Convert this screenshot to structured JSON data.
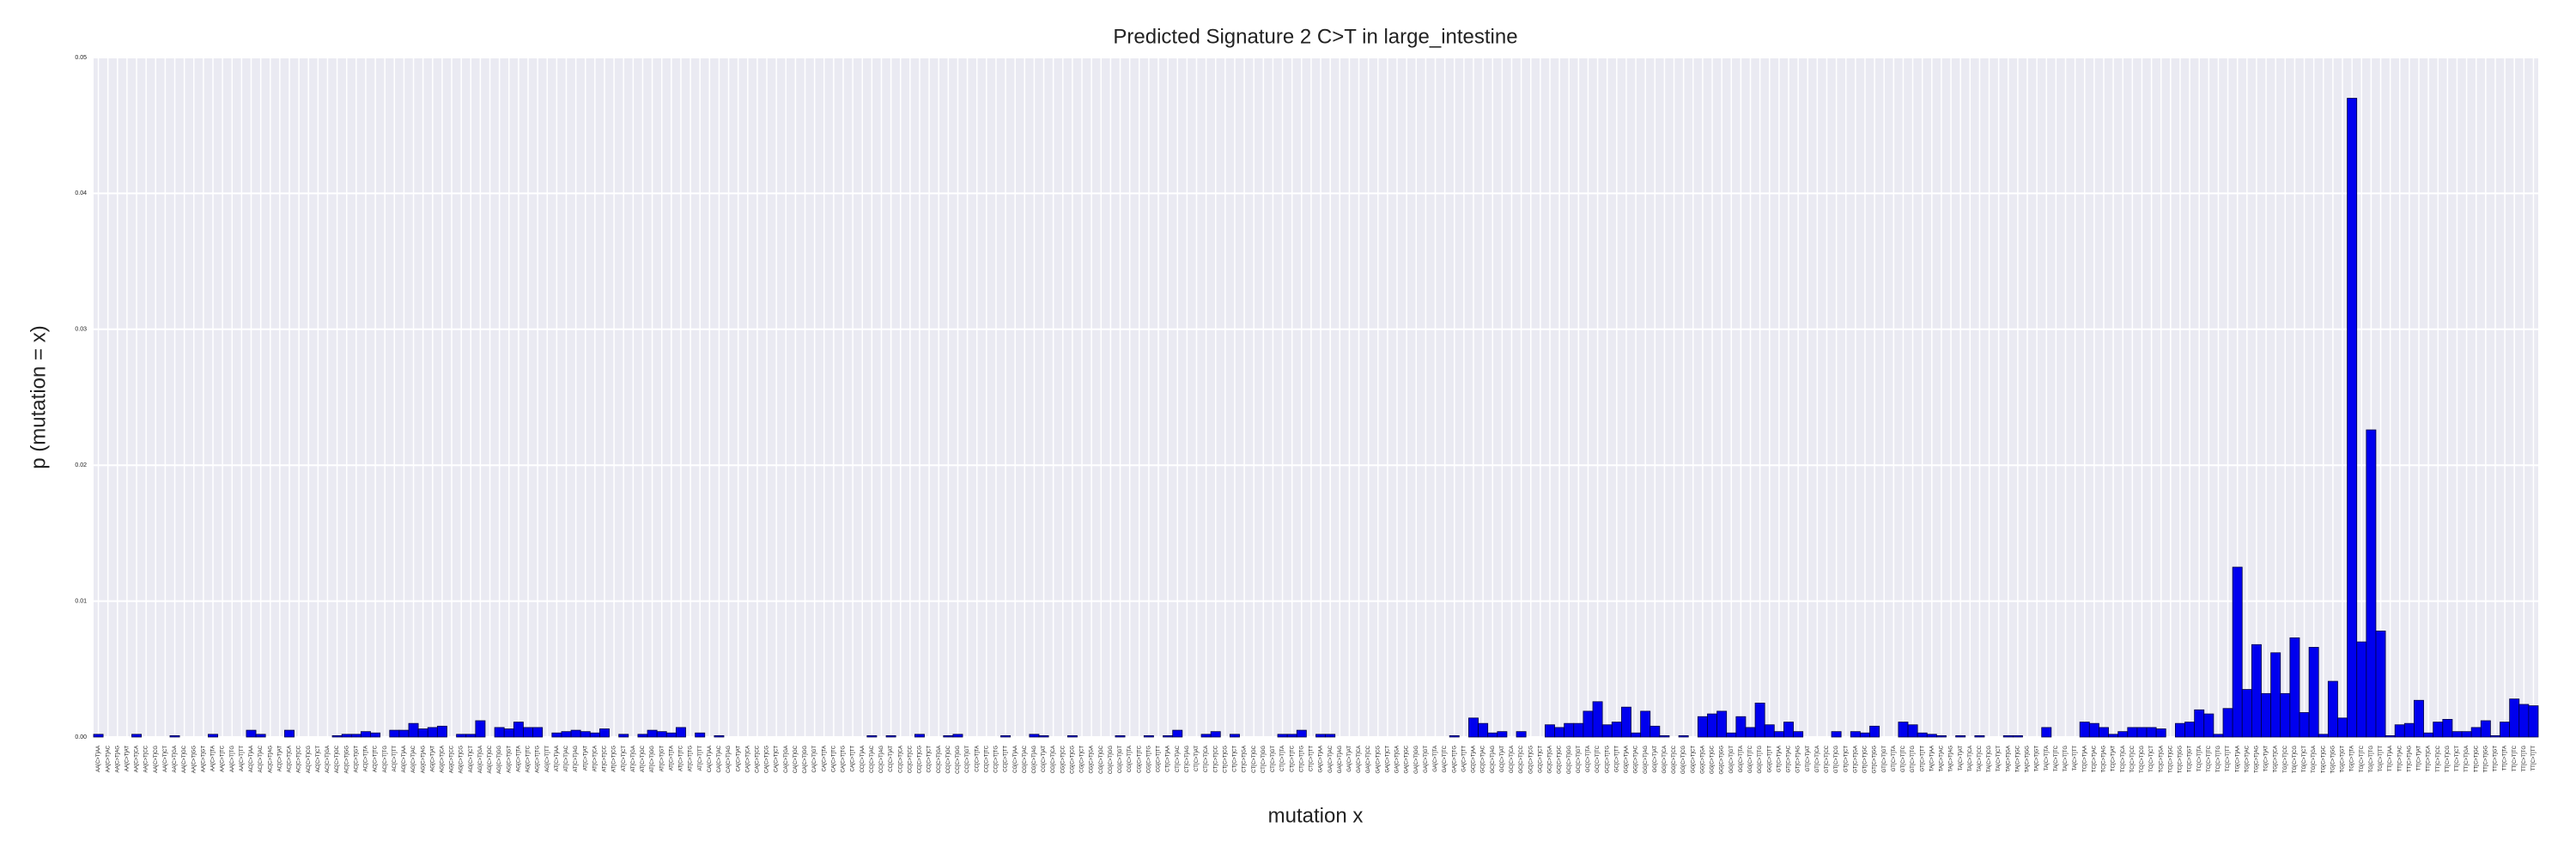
{
  "chart_data": {
    "type": "bar",
    "title": "Predicted Signature 2 C>T in large_intestine",
    "x_label": "mutation x",
    "y_label": "p (mutation = x)",
    "color": "#0000ee",
    "grid": true,
    "ylim": [
      0,
      0.05
    ],
    "yticks": [
      {
        "value": 0,
        "label": "0.00"
      },
      {
        "value": 0.01,
        "label": "0.01"
      },
      {
        "value": 0.02,
        "label": "0.02"
      },
      {
        "value": 0.03,
        "label": "0.03"
      },
      {
        "value": 0.04,
        "label": "0.04"
      },
      {
        "value": 0.05,
        "label": "0.05"
      }
    ],
    "categories": [
      "AA[C>T]AA",
      "AA[C>T]AC",
      "AA[C>T]AG",
      "AA[C>T]AT",
      "AA[C>T]CA",
      "AA[C>T]CC",
      "AA[C>T]CG",
      "AA[C>T]CT",
      "AA[C>T]GA",
      "AA[C>T]GC",
      "AA[C>T]GG",
      "AA[C>T]GT",
      "AA[C>T]TA",
      "AA[C>T]TC",
      "AA[C>T]TG",
      "AA[C>T]TT",
      "AC[C>T]AA",
      "AC[C>T]AC",
      "AC[C>T]AG",
      "AC[C>T]AT",
      "AC[C>T]CA",
      "AC[C>T]CC",
      "AC[C>T]CG",
      "AC[C>T]CT",
      "AC[C>T]GA",
      "AC[C>T]GC",
      "AC[C>T]GG",
      "AC[C>T]GT",
      "AC[C>T]TA",
      "AC[C>T]TC",
      "AC[C>T]TG",
      "AC[C>T]TT",
      "AG[C>T]AA",
      "AG[C>T]AC",
      "AG[C>T]AG",
      "AG[C>T]AT",
      "AG[C>T]CA",
      "AG[C>T]CC",
      "AG[C>T]CG",
      "AG[C>T]CT",
      "AG[C>T]GA",
      "AG[C>T]GC",
      "AG[C>T]GG",
      "AG[C>T]GT",
      "AG[C>T]TA",
      "AG[C>T]TC",
      "AG[C>T]TG",
      "AG[C>T]TT",
      "AT[C>T]AA",
      "AT[C>T]AC",
      "AT[C>T]AG",
      "AT[C>T]AT",
      "AT[C>T]CA",
      "AT[C>T]CC",
      "AT[C>T]CG",
      "AT[C>T]CT",
      "AT[C>T]GA",
      "AT[C>T]GC",
      "AT[C>T]GG",
      "AT[C>T]GT",
      "AT[C>T]TA",
      "AT[C>T]TC",
      "AT[C>T]TG",
      "AT[C>T]TT",
      "CA[C>T]AA",
      "CA[C>T]AC",
      "CA[C>T]AG",
      "CA[C>T]AT",
      "CA[C>T]CA",
      "CA[C>T]CC",
      "CA[C>T]CG",
      "CA[C>T]CT",
      "CA[C>T]GA",
      "CA[C>T]GC",
      "CA[C>T]GG",
      "CA[C>T]GT",
      "CA[C>T]TA",
      "CA[C>T]TC",
      "CA[C>T]TG",
      "CA[C>T]TT",
      "CC[C>T]AA",
      "CC[C>T]AC",
      "CC[C>T]AG",
      "CC[C>T]AT",
      "CC[C>T]CA",
      "CC[C>T]CC",
      "CC[C>T]CG",
      "CC[C>T]CT",
      "CC[C>T]GA",
      "CC[C>T]GC",
      "CC[C>T]GG",
      "CC[C>T]GT",
      "CC[C>T]TA",
      "CC[C>T]TC",
      "CC[C>T]TG",
      "CC[C>T]TT",
      "CG[C>T]AA",
      "CG[C>T]AC",
      "CG[C>T]AG",
      "CG[C>T]AT",
      "CG[C>T]CA",
      "CG[C>T]CC",
      "CG[C>T]CG",
      "CG[C>T]CT",
      "CG[C>T]GA",
      "CG[C>T]GC",
      "CG[C>T]GG",
      "CG[C>T]GT",
      "CG[C>T]TA",
      "CG[C>T]TC",
      "CG[C>T]TG",
      "CG[C>T]TT",
      "CT[C>T]AA",
      "CT[C>T]AC",
      "CT[C>T]AG",
      "CT[C>T]AT",
      "CT[C>T]CA",
      "CT[C>T]CC",
      "CT[C>T]CG",
      "CT[C>T]CT",
      "CT[C>T]GA",
      "CT[C>T]GC",
      "CT[C>T]GG",
      "CT[C>T]GT",
      "CT[C>T]TA",
      "CT[C>T]TC",
      "CT[C>T]TG",
      "CT[C>T]TT",
      "GA[C>T]AA",
      "GA[C>T]AC",
      "GA[C>T]AG",
      "GA[C>T]AT",
      "GA[C>T]CA",
      "GA[C>T]CC",
      "GA[C>T]CG",
      "GA[C>T]CT",
      "GA[C>T]GA",
      "GA[C>T]GC",
      "GA[C>T]GG",
      "GA[C>T]GT",
      "GA[C>T]TA",
      "GA[C>T]TC",
      "GA[C>T]TG",
      "GA[C>T]TT",
      "GC[C>T]AA",
      "GC[C>T]AC",
      "GC[C>T]AG",
      "GC[C>T]AT",
      "GC[C>T]CA",
      "GC[C>T]CC",
      "GC[C>T]CG",
      "GC[C>T]CT",
      "GC[C>T]GA",
      "GC[C>T]GC",
      "GC[C>T]GG",
      "GC[C>T]GT",
      "GC[C>T]TA",
      "GC[C>T]TC",
      "GC[C>T]TG",
      "GC[C>T]TT",
      "GG[C>T]AA",
      "GG[C>T]AC",
      "GG[C>T]AG",
      "GG[C>T]AT",
      "GG[C>T]CA",
      "GG[C>T]CC",
      "GG[C>T]CG",
      "GG[C>T]CT",
      "GG[C>T]GA",
      "GG[C>T]GC",
      "GG[C>T]GG",
      "GG[C>T]GT",
      "GG[C>T]TA",
      "GG[C>T]TC",
      "GG[C>T]TG",
      "GG[C>T]TT",
      "GT[C>T]AA",
      "GT[C>T]AC",
      "GT[C>T]AG",
      "GT[C>T]AT",
      "GT[C>T]CA",
      "GT[C>T]CC",
      "GT[C>T]CG",
      "GT[C>T]CT",
      "GT[C>T]GA",
      "GT[C>T]GC",
      "GT[C>T]GG",
      "GT[C>T]GT",
      "GT[C>T]TA",
      "GT[C>T]TC",
      "GT[C>T]TG",
      "GT[C>T]TT",
      "TA[C>T]AA",
      "TA[C>T]AC",
      "TA[C>T]AG",
      "TA[C>T]AT",
      "TA[C>T]CA",
      "TA[C>T]CC",
      "TA[C>T]CG",
      "TA[C>T]CT",
      "TA[C>T]GA",
      "TA[C>T]GC",
      "TA[C>T]GG",
      "TA[C>T]GT",
      "TA[C>T]TA",
      "TA[C>T]TC",
      "TA[C>T]TG",
      "TA[C>T]TT",
      "TC[C>T]AA",
      "TC[C>T]AC",
      "TC[C>T]AG",
      "TC[C>T]AT",
      "TC[C>T]CA",
      "TC[C>T]CC",
      "TC[C>T]CG",
      "TC[C>T]CT",
      "TC[C>T]GA",
      "TC[C>T]GC",
      "TC[C>T]GG",
      "TC[C>T]GT",
      "TC[C>T]TA",
      "TC[C>T]TC",
      "TC[C>T]TG",
      "TC[C>T]TT",
      "TG[C>T]AA",
      "TG[C>T]AC",
      "TG[C>T]AG",
      "TG[C>T]AT",
      "TG[C>T]CA",
      "TG[C>T]CC",
      "TG[C>T]CG",
      "TG[C>T]CT",
      "TG[C>T]GA",
      "TG[C>T]GC",
      "TG[C>T]GG",
      "TG[C>T]GT",
      "TG[C>T]TA",
      "TG[C>T]TC",
      "TG[C>T]TG",
      "TG[C>T]TT",
      "TT[C>T]AA",
      "TT[C>T]AC",
      "TT[C>T]AG",
      "TT[C>T]AT",
      "TT[C>T]CA",
      "TT[C>T]CC",
      "TT[C>T]CG",
      "TT[C>T]CT",
      "TT[C>T]GA",
      "TT[C>T]GC",
      "TT[C>T]GG",
      "TT[C>T]GT",
      "TT[C>T]TA",
      "TT[C>T]TC",
      "TT[C>T]TG",
      "TT[C>T]TT"
    ],
    "values": [
      0.0002,
      0,
      0,
      0,
      0.0002,
      0,
      0,
      0,
      0.0001,
      0,
      0,
      0,
      0.0002,
      0,
      0,
      0,
      0.0005,
      0.0002,
      0,
      0,
      0.0005,
      0,
      0,
      0,
      0,
      0.0001,
      0.0002,
      0.0002,
      0.0004,
      0.0003,
      0,
      0.0005,
      0.0005,
      0.001,
      0.0006,
      0.0007,
      0.0008,
      0,
      0.0002,
      0.0002,
      0.0012,
      0,
      0.0007,
      0.0006,
      0.0011,
      0.0007,
      0.0007,
      0,
      0.0003,
      0.0004,
      0.0005,
      0.0004,
      0.0003,
      0.0006,
      0,
      0.0002,
      0,
      0.0002,
      0.0005,
      0.0004,
      0.0003,
      0.0007,
      0,
      0.0003,
      0,
      0.0001,
      0,
      0,
      0,
      0,
      0,
      0,
      0,
      0,
      0,
      0,
      0,
      0,
      0,
      0,
      0,
      0.0001,
      0,
      0.0001,
      0,
      0,
      0.0002,
      0,
      0,
      0.0001,
      0.0002,
      0,
      0,
      0,
      0,
      0.0001,
      0,
      0,
      0.0002,
      0.0001,
      0,
      0,
      0.0001,
      0,
      0,
      0,
      0,
      0.0001,
      0,
      0,
      0.0001,
      0,
      0.0001,
      0.0005,
      0,
      0,
      0.0002,
      0.0004,
      0,
      0.0002,
      0,
      0,
      0,
      0,
      0.0002,
      0.0002,
      0.0005,
      0,
      0.0002,
      0.0002,
      0,
      0,
      0,
      0,
      0,
      0,
      0,
      0,
      0,
      0,
      0,
      0,
      0.0001,
      0,
      0.0014,
      0.001,
      0.0003,
      0.0004,
      0,
      0.0004,
      0,
      0,
      0.0009,
      0.0007,
      0.001,
      0.001,
      0.0019,
      0.0026,
      0.0009,
      0.0011,
      0.0022,
      0.0003,
      0.0019,
      0.0008,
      0.0001,
      0,
      0.0001,
      0,
      0.0015,
      0.0017,
      0.0019,
      0.0003,
      0.0015,
      0.0007,
      0.0025,
      0.0009,
      0.0004,
      0.0011,
      0.0004,
      0,
      0,
      0,
      0.0004,
      0,
      0.0004,
      0.0003,
      0.0008,
      0,
      0,
      0.0011,
      0.0009,
      0.0003,
      0.0002,
      0.0001,
      0,
      0.0001,
      0,
      0.0001,
      0,
      0,
      0.0001,
      0.0001,
      0,
      0,
      0.0007,
      0,
      0,
      0,
      0.0011,
      0.001,
      0.0007,
      0.0002,
      0.0004,
      0.0007,
      0.0007,
      0.0007,
      0.0006,
      0,
      0.001,
      0.0011,
      0.002,
      0.0017,
      0.0002,
      0.0021,
      0.0125,
      0.0035,
      0.0068,
      0.0032,
      0.0062,
      0.0032,
      0.0073,
      0.0018,
      0.0066,
      0.0002,
      0.0041,
      0.0014,
      0.047,
      0.007,
      0.0226,
      0.0078,
      0.0001,
      0.0009,
      0.001,
      0.0027,
      0.0003,
      0.0011,
      0.0013,
      0.0004,
      0.0004,
      0.0007,
      0.0012,
      0.0001,
      0.0011,
      0.0028,
      0.0024,
      0.0023
    ]
  }
}
